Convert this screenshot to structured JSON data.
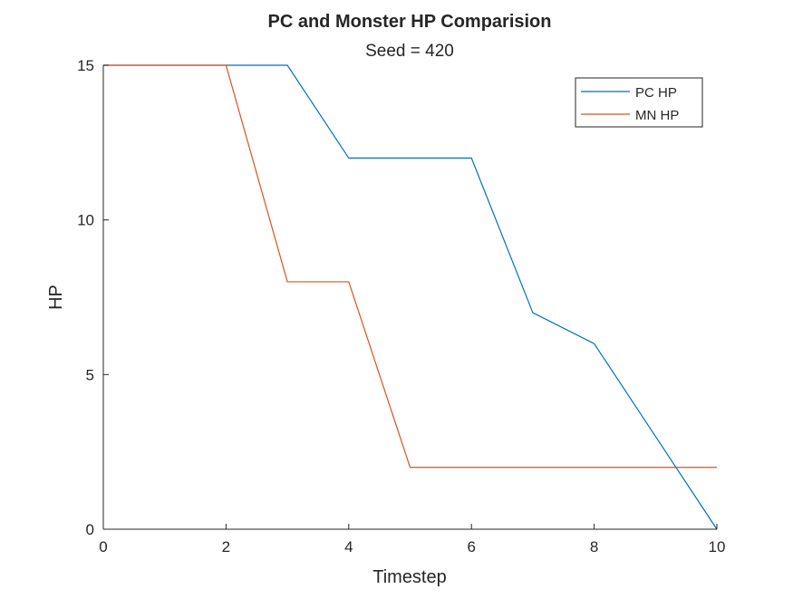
{
  "chart_data": {
    "type": "line",
    "title": "PC and Monster HP Comparision",
    "subtitle": "Seed = 420",
    "xlabel": "Timestep",
    "ylabel": "HP",
    "xlim": [
      0,
      10
    ],
    "ylim": [
      0,
      15
    ],
    "xticks": [
      "0",
      "2",
      "4",
      "6",
      "8",
      "10"
    ],
    "yticks": [
      "0",
      "5",
      "10",
      "15"
    ],
    "grid": false,
    "legend_position": "top-right",
    "x": [
      0,
      1,
      2,
      3,
      4,
      5,
      6,
      7,
      8,
      9,
      10
    ],
    "series": [
      {
        "name": "PC HP",
        "color": "#0072BD",
        "values": [
          15,
          15,
          15,
          15,
          12,
          12,
          12,
          7,
          6,
          3,
          0
        ]
      },
      {
        "name": "MN HP",
        "color": "#D95319",
        "values": [
          15,
          15,
          15,
          8,
          8,
          2,
          2,
          2,
          2,
          2,
          2
        ]
      }
    ]
  }
}
